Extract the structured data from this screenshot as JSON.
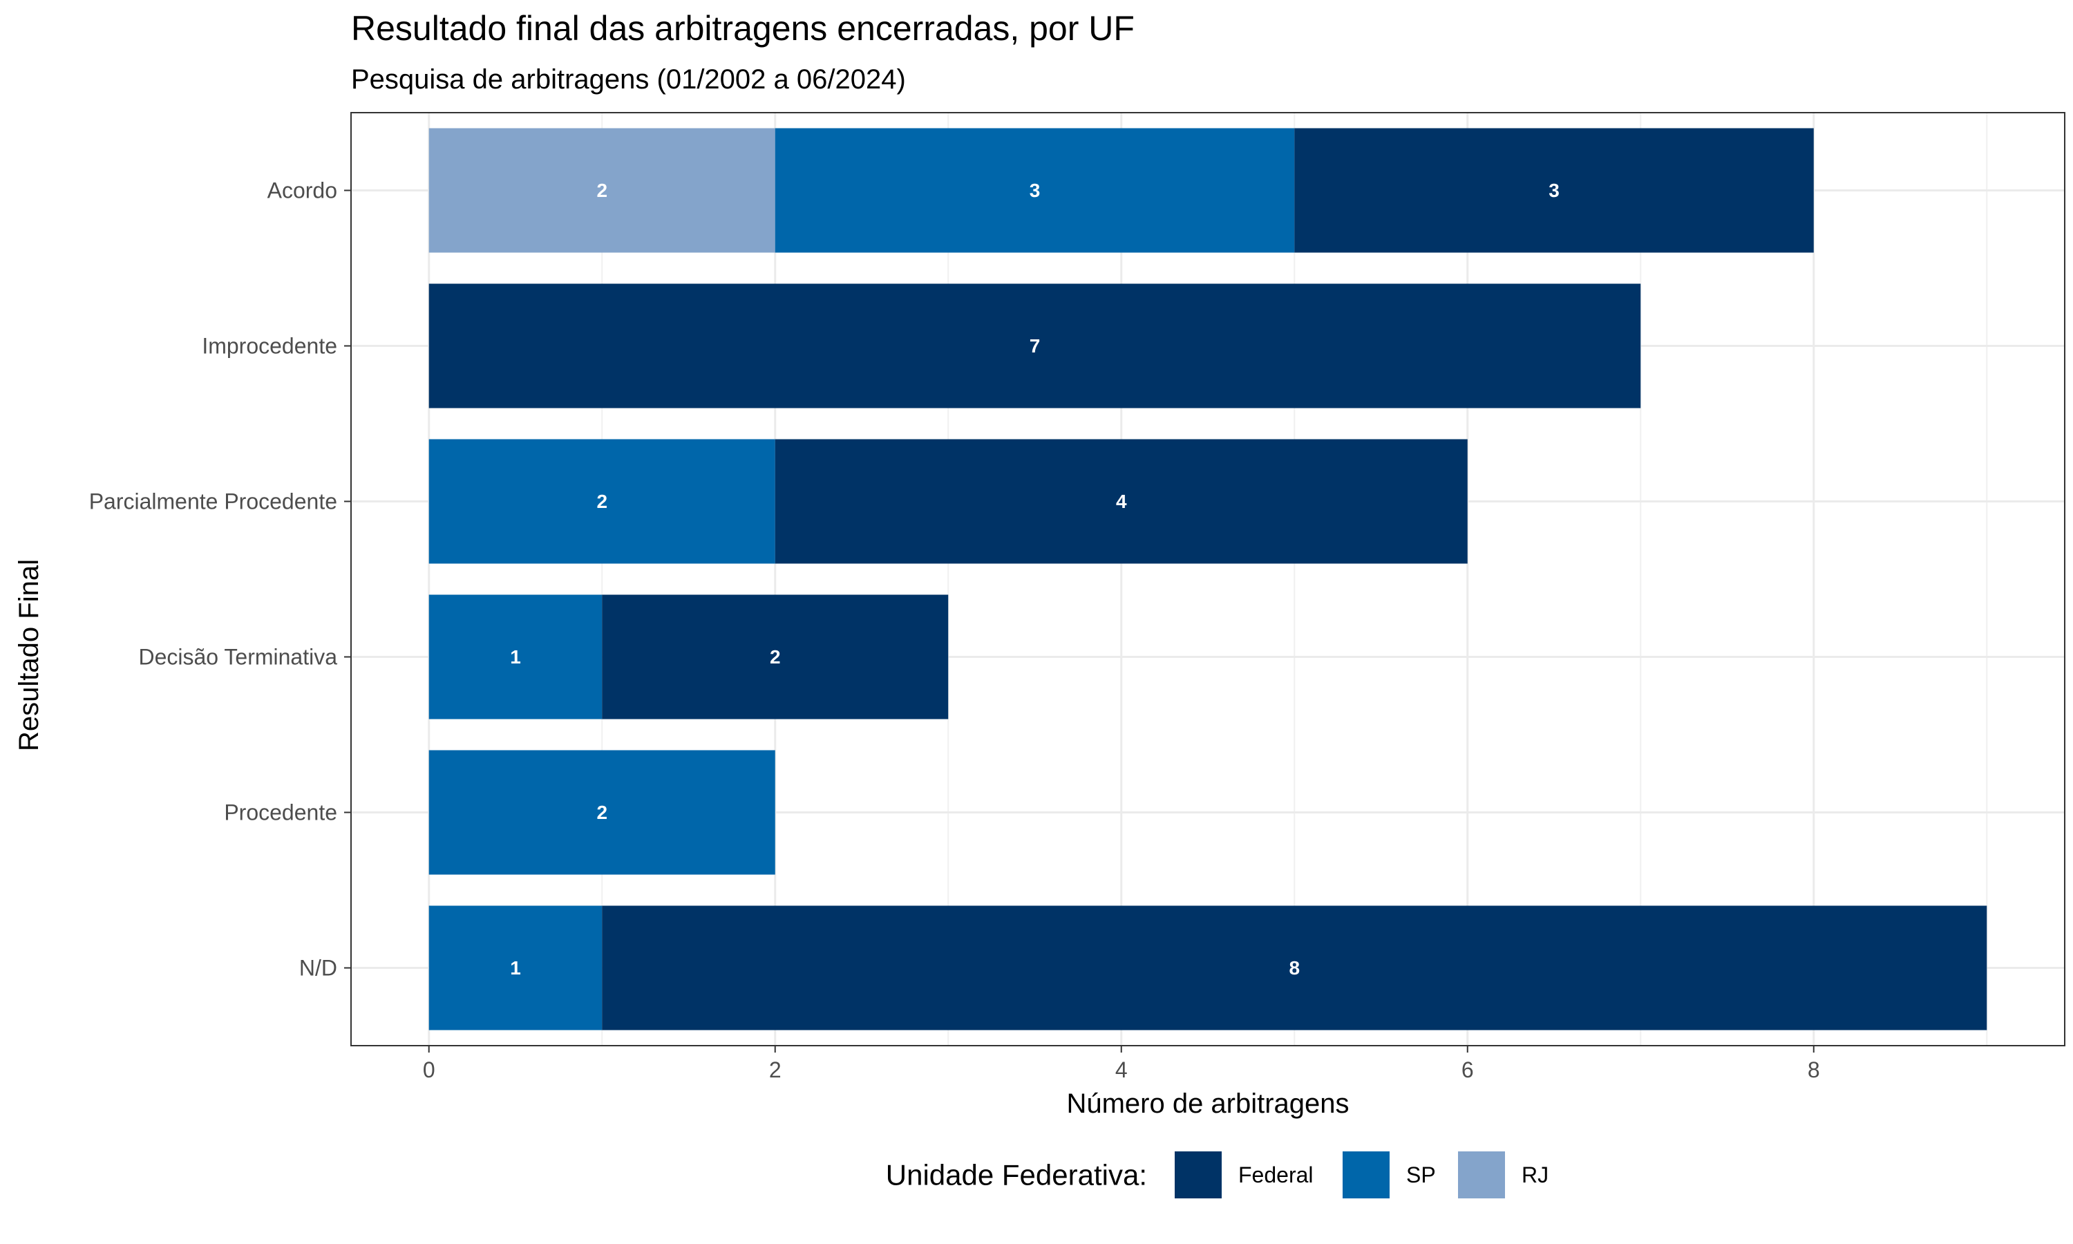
{
  "chart_data": {
    "type": "bar",
    "orientation": "horizontal",
    "stacked": true,
    "title": "Resultado final das arbitragens encerradas, por UF",
    "subtitle": "Pesquisa de arbitragens (01/2002 a 06/2024)",
    "xlabel": "Número de arbitragens",
    "ylabel": "Resultado Final",
    "xlim": [
      -0.45,
      9.45
    ],
    "xticks": [
      0,
      2,
      4,
      6,
      8
    ],
    "grid": true,
    "categories": [
      "Acordo",
      "Improcedente",
      "Parcialmente Procedente",
      "Decisão Terminativa",
      "Procedente",
      "N/D"
    ],
    "stack_order": [
      "RJ",
      "SP",
      "Federal"
    ],
    "series": [
      {
        "name": "Federal",
        "color": "#003366",
        "values": [
          3,
          7,
          4,
          2,
          0,
          8
        ]
      },
      {
        "name": "SP",
        "color": "#0066aa",
        "values": [
          3,
          0,
          2,
          1,
          2,
          1
        ]
      },
      {
        "name": "RJ",
        "color": "#84a4cb",
        "values": [
          2,
          0,
          0,
          0,
          0,
          0
        ]
      }
    ],
    "legend": {
      "title": "Unidade Federativa:",
      "position": "bottom",
      "entries": [
        "Federal",
        "SP",
        "RJ"
      ]
    }
  }
}
